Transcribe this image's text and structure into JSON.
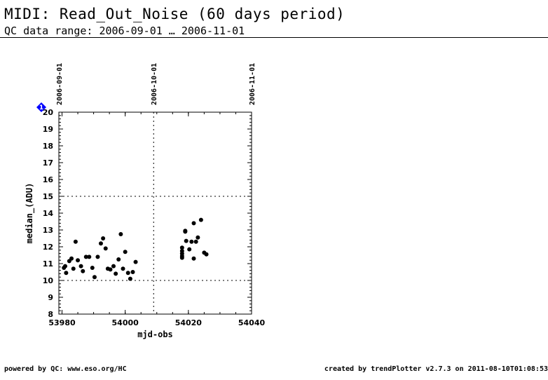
{
  "header": {
    "title": "MIDI: Read_Out_Noise (60 days period)",
    "subtitle": "QC data range: 2006-09-01 … 2006-11-01"
  },
  "footer": {
    "left": "powered by QC: www.eso.org/HC",
    "right": "created by trendPlotter v2.7.3 on 2011-08-10T01:08:53"
  },
  "marker": {
    "label": "1",
    "color": "#0000ff"
  },
  "chart_data": {
    "type": "scatter",
    "xlabel": "mjd-obs",
    "ylabel": "median_(ADU)",
    "xlim": [
      53979,
      54040
    ],
    "ylim": [
      8,
      20
    ],
    "x_ticks": [
      53980,
      54000,
      54020,
      54040
    ],
    "y_ticks": [
      8,
      9,
      10,
      11,
      12,
      13,
      14,
      15,
      16,
      17,
      18,
      19,
      20
    ],
    "date_ticks": [
      {
        "label": "2006-09-01",
        "mjd": 53979
      },
      {
        "label": "2006-10-01",
        "mjd": 54009
      },
      {
        "label": "2006-11-01",
        "mjd": 54040
      }
    ],
    "grid": {
      "vertical": [
        53979,
        54009,
        54040
      ],
      "horizontal": [
        10,
        15
      ]
    },
    "points": [
      [
        53980.6,
        10.75
      ],
      [
        53981.0,
        10.85
      ],
      [
        53981.3,
        10.45
      ],
      [
        53982.3,
        11.15
      ],
      [
        53983.0,
        11.3
      ],
      [
        53983.6,
        10.7
      ],
      [
        53984.3,
        12.3
      ],
      [
        53985.0,
        11.2
      ],
      [
        53986.0,
        10.85
      ],
      [
        53986.6,
        10.55
      ],
      [
        53987.6,
        11.4
      ],
      [
        53988.6,
        11.4
      ],
      [
        53989.6,
        10.75
      ],
      [
        53990.3,
        10.2
      ],
      [
        53991.3,
        11.4
      ],
      [
        53992.3,
        12.2
      ],
      [
        53993.0,
        12.5
      ],
      [
        53993.8,
        11.9
      ],
      [
        53994.5,
        10.7
      ],
      [
        53995.3,
        10.65
      ],
      [
        53996.3,
        10.85
      ],
      [
        53997.0,
        10.4
      ],
      [
        53997.9,
        11.25
      ],
      [
        53998.6,
        12.75
      ],
      [
        53999.3,
        10.7
      ],
      [
        54000.0,
        11.7
      ],
      [
        54000.9,
        10.45
      ],
      [
        54001.6,
        10.1
      ],
      [
        54002.4,
        10.5
      ],
      [
        54003.3,
        11.1
      ],
      [
        54018.0,
        11.95
      ],
      [
        54018.0,
        11.75
      ],
      [
        54018.0,
        11.6
      ],
      [
        54018.0,
        11.45
      ],
      [
        54018.0,
        11.35
      ],
      [
        54019.0,
        12.95
      ],
      [
        54019.0,
        12.9
      ],
      [
        54019.3,
        12.35
      ],
      [
        54020.3,
        11.85
      ],
      [
        54021.0,
        12.3
      ],
      [
        54021.7,
        13.4
      ],
      [
        54021.7,
        11.3
      ],
      [
        54022.4,
        12.3
      ],
      [
        54023.0,
        12.55
      ],
      [
        54024.0,
        13.6
      ],
      [
        54025.0,
        11.65
      ],
      [
        54025.7,
        11.55
      ]
    ]
  }
}
